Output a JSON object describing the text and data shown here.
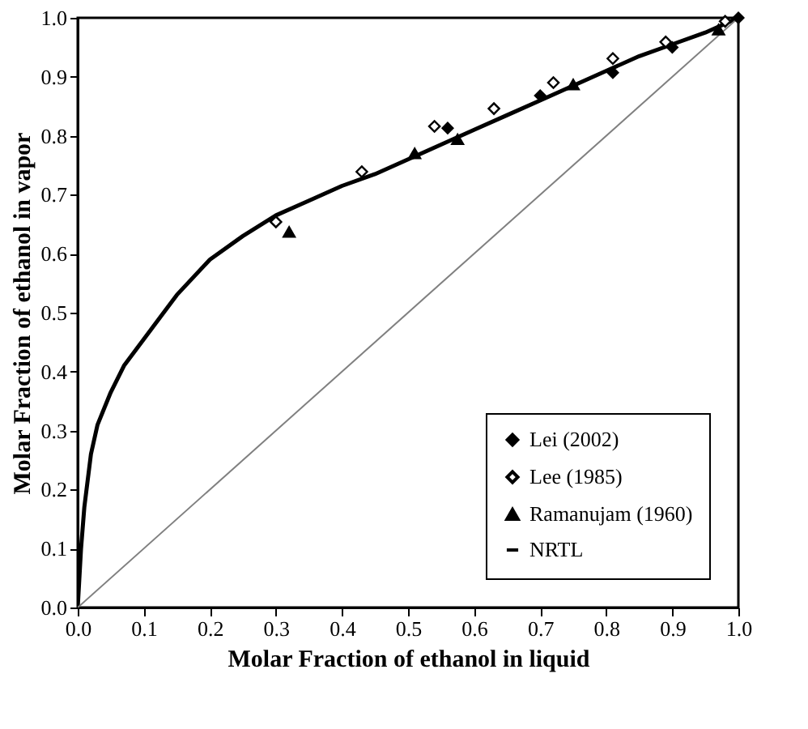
{
  "chart_data": {
    "type": "scatter",
    "xlabel": "Molar Fraction of ethanol in liquid",
    "ylabel": "Molar Fraction of ethanol in vapor",
    "xlim": [
      0,
      1
    ],
    "ylim": [
      0,
      1
    ],
    "xticks": [
      {
        "value": 0,
        "label": "0.0"
      },
      0.1,
      0.2,
      0.3,
      0.4,
      0.5,
      0.6,
      0.7,
      0.8,
      0.9,
      {
        "value": 1,
        "label": "1.0"
      }
    ],
    "yticks": [
      {
        "value": 0,
        "label": "0.0"
      },
      0.1,
      0.2,
      0.3,
      0.4,
      0.5,
      0.6,
      0.7,
      0.8,
      0.9,
      {
        "value": 1,
        "label": "1.0"
      }
    ],
    "grid": false,
    "legend": "bottom right",
    "series": [
      {
        "name": "Lei (2002)",
        "marker": "diamond",
        "color": "#000000",
        "x": [
          0.56,
          0.7,
          0.81,
          0.9,
          1.0
        ],
        "values": [
          0.813,
          0.868,
          0.907,
          0.95,
          1.0
        ]
      },
      {
        "name": "Lee (1985)",
        "marker": "diamond",
        "color": "#000000",
        "x": [
          0.3,
          0.43,
          0.54,
          0.63,
          0.72,
          0.81,
          0.89,
          0.98
        ],
        "values": [
          0.654,
          0.739,
          0.816,
          0.846,
          0.89,
          0.931,
          0.959,
          0.994
        ]
      },
      {
        "name": "Ramanujam (1960)",
        "marker": "triangle",
        "color": "#000000",
        "x": [
          0.32,
          0.51,
          0.575,
          0.75,
          0.97
        ],
        "values": [
          0.637,
          0.77,
          0.794,
          0.887,
          0.98
        ]
      },
      {
        "name": "NRTL",
        "type": "line",
        "color": "#000000",
        "x": [
          0,
          0.005,
          0.01,
          0.02,
          0.03,
          0.05,
          0.07,
          0.1,
          0.13,
          0.15,
          0.2,
          0.25,
          0.3,
          0.35,
          0.4,
          0.45,
          0.5,
          0.55,
          0.6,
          0.65,
          0.7,
          0.75,
          0.8,
          0.85,
          0.9,
          0.95,
          1.0
        ],
        "values": [
          0,
          0.1,
          0.17,
          0.26,
          0.31,
          0.365,
          0.41,
          0.455,
          0.5,
          0.53,
          0.59,
          0.63,
          0.665,
          0.69,
          0.715,
          0.735,
          0.76,
          0.785,
          0.81,
          0.835,
          0.86,
          0.885,
          0.91,
          0.935,
          0.955,
          0.975,
          1.0
        ]
      },
      {
        "type": "line",
        "color": "#808080",
        "x": [
          0,
          1
        ],
        "values": [
          0,
          1
        ]
      }
    ]
  }
}
